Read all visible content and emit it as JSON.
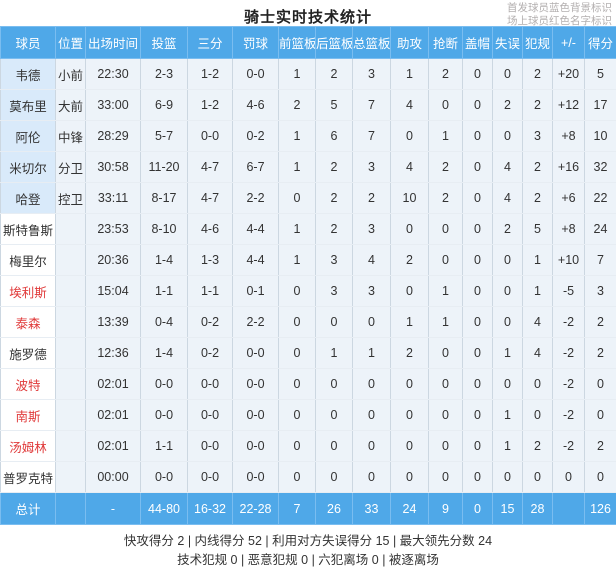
{
  "title": "骑士实时技术统计",
  "legend": {
    "line1": "首发球员蓝色背景标识",
    "line2": "场上球员红色名字标识"
  },
  "table": {
    "columns": [
      {
        "key": "name",
        "label": "球员"
      },
      {
        "key": "pos",
        "label": "位置"
      },
      {
        "key": "time",
        "label": "出场时间"
      },
      {
        "key": "fg",
        "label": "投篮"
      },
      {
        "key": "tp",
        "label": "三分"
      },
      {
        "key": "ft",
        "label": "罚球"
      },
      {
        "key": "oreb",
        "label": "前篮板"
      },
      {
        "key": "dreb",
        "label": "后篮板"
      },
      {
        "key": "reb",
        "label": "总篮板"
      },
      {
        "key": "ast",
        "label": "助攻"
      },
      {
        "key": "stl",
        "label": "抢断"
      },
      {
        "key": "blk",
        "label": "盖帽"
      },
      {
        "key": "to",
        "label": "失误"
      },
      {
        "key": "pf",
        "label": "犯规"
      },
      {
        "key": "pm",
        "label": "+/-"
      },
      {
        "key": "pts",
        "label": "得分"
      }
    ],
    "players": [
      {
        "name": "韦德",
        "starter": true,
        "on_court": false,
        "pos": "小前",
        "time": "22:30",
        "fg": "2-3",
        "tp": "1-2",
        "ft": "0-0",
        "oreb": "1",
        "dreb": "2",
        "reb": "3",
        "ast": "1",
        "stl": "2",
        "blk": "0",
        "to": "0",
        "pf": "2",
        "pm": "+20",
        "pts": "5"
      },
      {
        "name": "莫布里",
        "starter": true,
        "on_court": false,
        "pos": "大前",
        "time": "33:00",
        "fg": "6-9",
        "tp": "1-2",
        "ft": "4-6",
        "oreb": "2",
        "dreb": "5",
        "reb": "7",
        "ast": "4",
        "stl": "0",
        "blk": "0",
        "to": "2",
        "pf": "2",
        "pm": "+12",
        "pts": "17"
      },
      {
        "name": "阿伦",
        "starter": true,
        "on_court": false,
        "pos": "中锋",
        "time": "28:29",
        "fg": "5-7",
        "tp": "0-0",
        "ft": "0-2",
        "oreb": "1",
        "dreb": "6",
        "reb": "7",
        "ast": "0",
        "stl": "1",
        "blk": "0",
        "to": "0",
        "pf": "3",
        "pm": "+8",
        "pts": "10"
      },
      {
        "name": "米切尔",
        "starter": true,
        "on_court": false,
        "pos": "分卫",
        "time": "30:58",
        "fg": "11-20",
        "tp": "4-7",
        "ft": "6-7",
        "oreb": "1",
        "dreb": "2",
        "reb": "3",
        "ast": "4",
        "stl": "2",
        "blk": "0",
        "to": "4",
        "pf": "2",
        "pm": "+16",
        "pts": "32"
      },
      {
        "name": "哈登",
        "starter": true,
        "on_court": false,
        "pos": "控卫",
        "time": "33:11",
        "fg": "8-17",
        "tp": "4-7",
        "ft": "2-2",
        "oreb": "0",
        "dreb": "2",
        "reb": "2",
        "ast": "10",
        "stl": "2",
        "blk": "0",
        "to": "4",
        "pf": "2",
        "pm": "+6",
        "pts": "22"
      },
      {
        "name": "斯特鲁斯",
        "starter": false,
        "on_court": false,
        "pos": "",
        "time": "23:53",
        "fg": "8-10",
        "tp": "4-6",
        "ft": "4-4",
        "oreb": "1",
        "dreb": "2",
        "reb": "3",
        "ast": "0",
        "stl": "0",
        "blk": "0",
        "to": "2",
        "pf": "5",
        "pm": "+8",
        "pts": "24"
      },
      {
        "name": "梅里尔",
        "starter": false,
        "on_court": false,
        "pos": "",
        "time": "20:36",
        "fg": "1-4",
        "tp": "1-3",
        "ft": "4-4",
        "oreb": "1",
        "dreb": "3",
        "reb": "4",
        "ast": "2",
        "stl": "0",
        "blk": "0",
        "to": "0",
        "pf": "1",
        "pm": "+10",
        "pts": "7"
      },
      {
        "name": "埃利斯",
        "starter": false,
        "on_court": true,
        "pos": "",
        "time": "15:04",
        "fg": "1-1",
        "tp": "1-1",
        "ft": "0-1",
        "oreb": "0",
        "dreb": "3",
        "reb": "3",
        "ast": "0",
        "stl": "1",
        "blk": "0",
        "to": "0",
        "pf": "1",
        "pm": "-5",
        "pts": "3"
      },
      {
        "name": "泰森",
        "starter": false,
        "on_court": true,
        "pos": "",
        "time": "13:39",
        "fg": "0-4",
        "tp": "0-2",
        "ft": "2-2",
        "oreb": "0",
        "dreb": "0",
        "reb": "0",
        "ast": "1",
        "stl": "1",
        "blk": "0",
        "to": "0",
        "pf": "4",
        "pm": "-2",
        "pts": "2"
      },
      {
        "name": "施罗德",
        "starter": false,
        "on_court": false,
        "pos": "",
        "time": "12:36",
        "fg": "1-4",
        "tp": "0-2",
        "ft": "0-0",
        "oreb": "0",
        "dreb": "1",
        "reb": "1",
        "ast": "2",
        "stl": "0",
        "blk": "0",
        "to": "1",
        "pf": "4",
        "pm": "-2",
        "pts": "2"
      },
      {
        "name": "波特",
        "starter": false,
        "on_court": true,
        "pos": "",
        "time": "02:01",
        "fg": "0-0",
        "tp": "0-0",
        "ft": "0-0",
        "oreb": "0",
        "dreb": "0",
        "reb": "0",
        "ast": "0",
        "stl": "0",
        "blk": "0",
        "to": "0",
        "pf": "0",
        "pm": "-2",
        "pts": "0"
      },
      {
        "name": "南斯",
        "starter": false,
        "on_court": true,
        "pos": "",
        "time": "02:01",
        "fg": "0-0",
        "tp": "0-0",
        "ft": "0-0",
        "oreb": "0",
        "dreb": "0",
        "reb": "0",
        "ast": "0",
        "stl": "0",
        "blk": "0",
        "to": "1",
        "pf": "0",
        "pm": "-2",
        "pts": "0"
      },
      {
        "name": "汤姆林",
        "starter": false,
        "on_court": true,
        "pos": "",
        "time": "02:01",
        "fg": "1-1",
        "tp": "0-0",
        "ft": "0-0",
        "oreb": "0",
        "dreb": "0",
        "reb": "0",
        "ast": "0",
        "stl": "0",
        "blk": "0",
        "to": "1",
        "pf": "2",
        "pm": "-2",
        "pts": "2"
      },
      {
        "name": "普罗克特",
        "starter": false,
        "on_court": false,
        "pos": "",
        "time": "00:00",
        "fg": "0-0",
        "tp": "0-0",
        "ft": "0-0",
        "oreb": "0",
        "dreb": "0",
        "reb": "0",
        "ast": "0",
        "stl": "0",
        "blk": "0",
        "to": "0",
        "pf": "0",
        "pm": "0",
        "pts": "0"
      }
    ],
    "total": {
      "name": "总计",
      "pos": "",
      "time": "-",
      "fg": "44-80",
      "tp": "16-32",
      "ft": "22-28",
      "oreb": "7",
      "dreb": "26",
      "reb": "33",
      "ast": "24",
      "stl": "9",
      "blk": "0",
      "to": "15",
      "pf": "28",
      "pm": "",
      "pts": "126"
    }
  },
  "footer": {
    "line1": "快攻得分 2 | 内线得分 52 | 利用对方失误得分 15 | 最大领先分数 24",
    "line2": "技术犯规 0 | 恶意犯规 0 | 六犯离场 0 | 被逐离场"
  },
  "colors": {
    "header_bg": "#4fa8e8",
    "starter_bg": "#d9eafa",
    "cell_bg": "#edf3f9",
    "on_court_name": "#e03a3a",
    "note_gray": "#b3afaf"
  }
}
